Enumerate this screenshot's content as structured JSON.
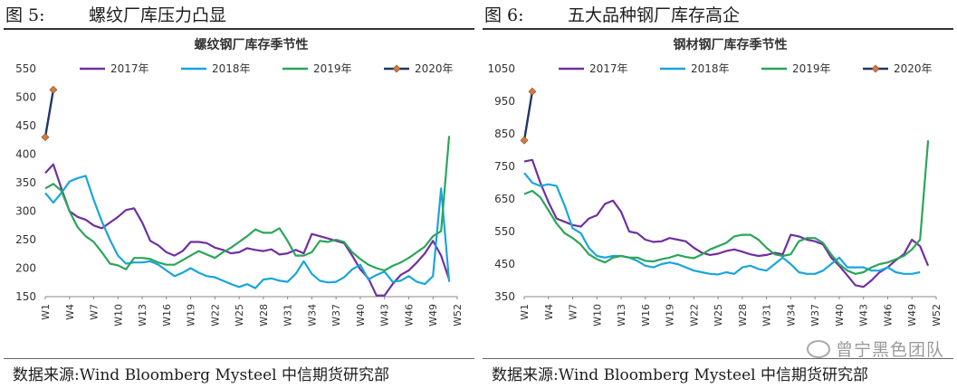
{
  "figures": [
    {
      "figure_label": "图 5:",
      "figure_title": "螺纹厂库压力凸显",
      "source": "数据来源:Wind Bloomberg Mysteel 中信期货研究部",
      "chart_data": {
        "type": "line",
        "title": "螺纹钢厂库存季节性",
        "ylim": [
          150,
          550
        ],
        "yticks": [
          150,
          200,
          250,
          300,
          350,
          400,
          450,
          500,
          550
        ],
        "x_ticks": [
          "W1",
          "W4",
          "W7",
          "W10",
          "W13",
          "W16",
          "W19",
          "W22",
          "W25",
          "W28",
          "W31",
          "W34",
          "W37",
          "W40",
          "W43",
          "W46",
          "W49",
          "W52"
        ],
        "legend_position": "top",
        "grid": false,
        "series": [
          {
            "name": "2017年",
            "color": "#7030a0",
            "marker": false,
            "values": [
              367,
              382,
              340,
              300,
              290,
              285,
              275,
              270,
              280,
              290,
              302,
              305,
              280,
              248,
              240,
              228,
              222,
              230,
              246,
              246,
              244,
              236,
              232,
              226,
              228,
              235,
              232,
              230,
              233,
              224,
              226,
              232,
              226,
              260,
              256,
              252,
              248,
              244,
              222,
              198,
              182,
              152,
              152,
              172,
              188,
              196,
              210,
              226,
              248,
              222,
              180
            ]
          },
          {
            "name": "2018年",
            "color": "#1aa5dc",
            "marker": false,
            "values": [
              332,
              315,
              332,
              352,
              358,
              362,
              320,
              282,
              250,
              222,
              208,
              210,
              210,
              212,
              206,
              196,
              186,
              192,
              200,
              192,
              186,
              184,
              178,
              172,
              167,
              172,
              165,
              180,
              182,
              178,
              176,
              190,
              212,
              190,
              178,
              175,
              176,
              184,
              198,
              206,
              180,
              188,
              194,
              176,
              178,
              186,
              176,
              172,
              186,
              340,
              176
            ]
          },
          {
            "name": "2019年",
            "color": "#2ca55a",
            "marker": false,
            "values": [
              340,
              348,
              336,
              300,
              272,
              256,
              246,
              228,
              208,
              205,
              198,
              218,
              218,
              216,
              210,
              206,
              206,
              214,
              222,
              230,
              224,
              218,
              228,
              236,
              246,
              256,
              268,
              262,
              262,
              270,
              248,
              222,
              222,
              228,
              248,
              246,
              250,
              246,
              228,
              216,
              206,
              200,
              196,
              204,
              210,
              218,
              228,
              238,
              256,
              265,
              432
            ]
          },
          {
            "name": "2020年",
            "color": "#1f3864",
            "marker": true,
            "marker_color": "#d87a3c",
            "values": [
              430,
              513
            ]
          }
        ]
      }
    },
    {
      "figure_label": "图 6:",
      "figure_title": "五大品种钢厂库存高企",
      "source": "数据来源:Wind Bloomberg Mysteel 中信期货研究部",
      "chart_data": {
        "type": "line",
        "title": "钢材钢厂库存季节性",
        "ylim": [
          350,
          1050
        ],
        "yticks": [
          350,
          450,
          550,
          650,
          750,
          850,
          950,
          1050
        ],
        "x_ticks": [
          "W1",
          "W4",
          "W7",
          "W10",
          "W13",
          "W16",
          "W19",
          "W22",
          "W25",
          "W28",
          "W31",
          "W34",
          "W37",
          "W40",
          "W43",
          "W46",
          "W49",
          "W52"
        ],
        "legend_position": "top",
        "grid": false,
        "series": [
          {
            "name": "2017年",
            "color": "#7030a0",
            "marker": false,
            "values": [
              765,
              770,
              700,
              640,
              590,
              580,
              570,
              565,
              590,
              600,
              635,
              645,
              610,
              550,
              545,
              525,
              518,
              520,
              530,
              525,
              520,
              500,
              485,
              478,
              482,
              490,
              495,
              488,
              480,
              475,
              478,
              485,
              480,
              540,
              535,
              525,
              520,
              510,
              470,
              445,
              415,
              385,
              380,
              400,
              425,
              440,
              462,
              480,
              525,
              505,
              445
            ]
          },
          {
            "name": "2018年",
            "color": "#1aa5dc",
            "marker": false,
            "values": [
              730,
              700,
              690,
              695,
              690,
              630,
              560,
              545,
              500,
              475,
              470,
              475,
              475,
              470,
              460,
              445,
              440,
              450,
              455,
              450,
              440,
              430,
              425,
              420,
              418,
              425,
              420,
              440,
              445,
              435,
              430,
              450,
              470,
              450,
              425,
              420,
              420,
              430,
              450,
              470,
              440,
              440,
              440,
              430,
              430,
              440,
              425,
              420,
              420,
              425
            ]
          },
          {
            "name": "2019年",
            "color": "#2ca55a",
            "marker": false,
            "values": [
              665,
              675,
              655,
              615,
              575,
              545,
              530,
              510,
              480,
              465,
              455,
              470,
              475,
              470,
              470,
              460,
              458,
              465,
              470,
              478,
              472,
              468,
              480,
              495,
              505,
              515,
              535,
              540,
              540,
              525,
              500,
              480,
              475,
              480,
              520,
              530,
              530,
              515,
              480,
              450,
              430,
              420,
              425,
              440,
              450,
              455,
              465,
              475,
              495,
              525,
              830
            ]
          },
          {
            "name": "2020年",
            "color": "#1f3864",
            "marker": true,
            "marker_color": "#d87a3c",
            "values": [
              830,
              980
            ]
          }
        ]
      }
    }
  ],
  "watermark": "曾宁黑色团队"
}
